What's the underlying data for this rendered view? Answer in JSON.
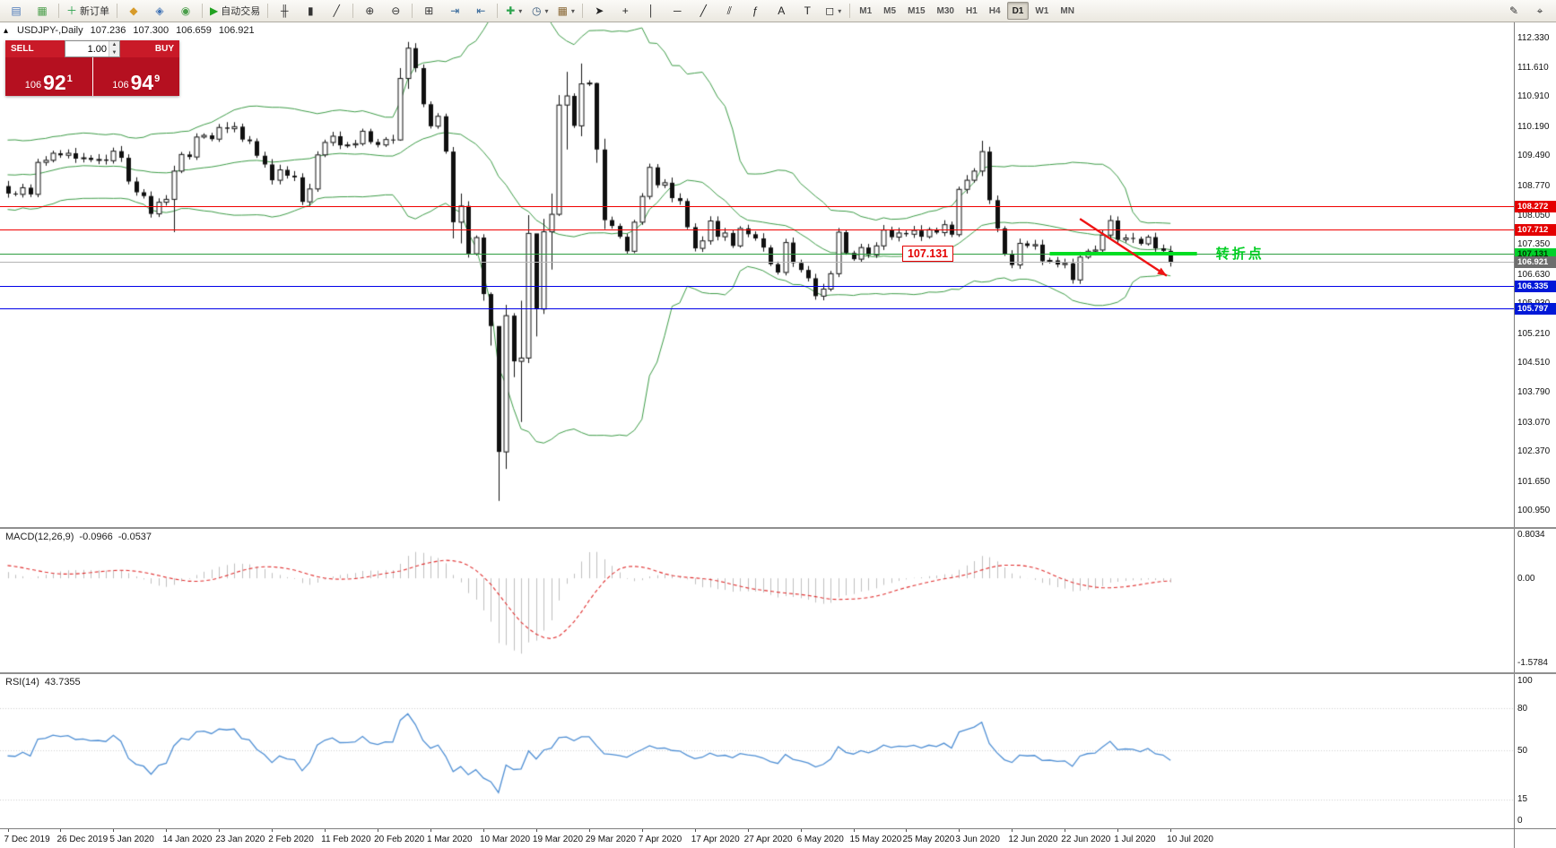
{
  "colors": {
    "candle_bull": "#ffffff",
    "candle_bear": "#101010",
    "candle_outline": "#101010",
    "bollinger": "#3c9b46",
    "macd_hist": "#bfbfbf",
    "macd_signal": "#e03030",
    "rsi": "#4f8fd4",
    "trend_red": "#ee1414",
    "support_green": "#00dd22",
    "panel_red": "#c91a28",
    "price_red": "#b51020"
  },
  "toolbar": {
    "groups": [
      {
        "name": "windows",
        "items": [
          {
            "name": "new-chart-icon",
            "glyph": "▤",
            "color": "#4a77b8"
          },
          {
            "name": "chart-profiles-icon",
            "glyph": "▦",
            "color": "#4a9e4a"
          }
        ]
      },
      {
        "name": "order",
        "items": [
          {
            "name": "new-order-button",
            "glyph": "＋",
            "color": "#2da44e",
            "label": "新订单"
          }
        ]
      },
      {
        "name": "panels",
        "items": [
          {
            "name": "market-watch-icon",
            "glyph": "◆",
            "color": "#d79b2a"
          },
          {
            "name": "data-window-icon",
            "glyph": "◈",
            "color": "#3f72b5"
          },
          {
            "name": "navigator-icon",
            "glyph": "◉",
            "color": "#4a9e4a"
          }
        ]
      },
      {
        "name": "autotrading",
        "items": [
          {
            "name": "auto-trading-button",
            "glyph": "▶",
            "color": "#21a121",
            "label": "自动交易"
          }
        ]
      },
      {
        "name": "chart-types",
        "items": [
          {
            "name": "bar-chart-icon",
            "glyph": "╫",
            "color": "#333333"
          },
          {
            "name": "candlestick-chart-icon",
            "glyph": "▮",
            "color": "#333333"
          },
          {
            "name": "line-chart-icon",
            "glyph": "╱",
            "color": "#333333"
          }
        ]
      },
      {
        "name": "zoom",
        "items": [
          {
            "name": "zoom-in-icon",
            "glyph": "⊕",
            "color": "#333333"
          },
          {
            "name": "zoom-out-icon",
            "glyph": "⊖",
            "color": "#333333"
          }
        ]
      },
      {
        "name": "arrange",
        "items": [
          {
            "name": "tile-windows-icon",
            "glyph": "⊞",
            "color": "#333333"
          },
          {
            "name": "auto-scroll-icon",
            "glyph": "⇥",
            "color": "#336699"
          },
          {
            "name": "chart-shift-icon",
            "glyph": "⇤",
            "color": "#336699"
          }
        ]
      },
      {
        "name": "chart-menus",
        "items": [
          {
            "name": "indicators-button",
            "glyph": "✚",
            "color": "#2da44e",
            "dropdown": true
          },
          {
            "name": "periods-button",
            "glyph": "◷",
            "color": "#335577",
            "dropdown": true
          },
          {
            "name": "templates-button",
            "glyph": "▦",
            "color": "#886633",
            "dropdown": true
          }
        ]
      },
      {
        "name": "drawing-tools",
        "items": [
          {
            "name": "cursor-tool",
            "glyph": "➤",
            "color": "#222222"
          },
          {
            "name": "crosshair-tool",
            "glyph": "+",
            "color": "#222222"
          },
          {
            "name": "vertical-line-tool",
            "glyph": "│",
            "color": "#222222"
          },
          {
            "name": "horizontal-line-tool",
            "glyph": "─",
            "color": "#222222"
          },
          {
            "name": "trendline-tool",
            "glyph": "╱",
            "color": "#222222"
          },
          {
            "name": "channel-tool",
            "glyph": "⫽",
            "color": "#222222"
          },
          {
            "name": "fibonacci-tool",
            "glyph": "ƒ",
            "color": "#222222"
          },
          {
            "name": "text-tool",
            "glyph": "A",
            "color": "#222222"
          },
          {
            "name": "label-tool",
            "glyph": "T",
            "color": "#222222"
          },
          {
            "name": "shapes-tool",
            "glyph": "◻",
            "color": "#222222",
            "dropdown": true
          }
        ]
      }
    ],
    "timeframes": {
      "items": [
        "M1",
        "M5",
        "M15",
        "M30",
        "H1",
        "H4",
        "D1",
        "W1",
        "MN"
      ],
      "active": "D1"
    },
    "right_items": [
      {
        "name": "pencil-icon",
        "glyph": "✎",
        "color": "#333333"
      },
      {
        "name": "pointer-target-icon",
        "glyph": "⌖",
        "color": "#333333"
      }
    ]
  },
  "chart": {
    "title": {
      "symbol_period": "USDJPY-,Daily",
      "open": "107.236",
      "high": "107.300",
      "low": "106.659",
      "close": "106.921"
    },
    "trade_panel": {
      "sell_label": "SELL",
      "buy_label": "BUY",
      "volume": "1.00",
      "sell_price": {
        "big_figure": "106",
        "pips": "92",
        "pipette": "1"
      },
      "buy_price": {
        "big_figure": "106",
        "pips": "94",
        "pipette": "9"
      }
    },
    "annotations": {
      "price_label": {
        "text": "107.131",
        "anchor_index": 122.5,
        "price": 107.131
      },
      "turning_point": {
        "text": "转折点",
        "anchor_index": 160,
        "price": 107.15,
        "color": "#00ce22"
      },
      "trend_arrow": {
        "from_index": 142,
        "from_price": 107.97,
        "to_index": 153.5,
        "to_price": 106.6
      },
      "support_segment": {
        "from_index": 138,
        "to_index": 157.5,
        "price": 107.131,
        "width": 4
      }
    },
    "hlines": [
      {
        "label": "108.272",
        "price": 108.272,
        "color": "#f00000",
        "badge_bg": "#e40000",
        "badge_text": "#ffffff"
      },
      {
        "label": "107.712",
        "price": 107.712,
        "color": "#f00000",
        "badge_bg": "#e40000",
        "badge_text": "#ffffff"
      },
      {
        "label": "107.131",
        "price": 107.131,
        "color": "#2f9e41",
        "badge_bg": "#00d02a",
        "badge_text": "#003300"
      },
      {
        "label": "106.921",
        "price": 106.921,
        "color": "#b4b4b4",
        "badge_bg": "#6e6e6e",
        "badge_text": "#ffffff"
      },
      {
        "label": "106.335",
        "price": 106.335,
        "color": "#0000e8",
        "badge_bg": "#0018d8",
        "badge_text": "#ffffff"
      },
      {
        "label": "105.797",
        "price": 105.797,
        "color": "#0000e8",
        "badge_bg": "#0018d8",
        "badge_text": "#ffffff"
      }
    ],
    "price_axis": {
      "ticks": [
        "112.330",
        "111.610",
        "110.910",
        "110.190",
        "109.490",
        "108.770",
        "108.050",
        "107.350",
        "106.630",
        "105.930",
        "105.210",
        "104.510",
        "103.790",
        "103.070",
        "102.370",
        "101.650",
        "100.950"
      ]
    },
    "time_axis": {
      "labels": [
        "7 Dec 2019",
        "26 Dec 2019",
        "5 Jan 2020",
        "14 Jan 2020",
        "23 Jan 2020",
        "2 Feb 2020",
        "11 Feb 2020",
        "20 Feb 2020",
        "1 Mar 2020",
        "10 Mar 2020",
        "19 Mar 2020",
        "29 Mar 2020",
        "7 Apr 2020",
        "17 Apr 2020",
        "27 Apr 2020",
        "6 May 2020",
        "15 May 2020",
        "25 May 2020",
        "3 Jun 2020",
        "12 Jun 2020",
        "22 Jun 2020",
        "1 Jul 2020",
        "10 Jul 2020"
      ]
    }
  },
  "indicators": {
    "macd": {
      "label": "MACD(12,26,9)",
      "value_main": "-0.0966",
      "value_signal": "-0.0537",
      "scale": [
        "0.8034",
        "0.00",
        "-1.5784"
      ],
      "params": {
        "fast": 12,
        "slow": 26,
        "signal": 9
      }
    },
    "rsi": {
      "label": "RSI(14)",
      "value": "43.7355",
      "scale": [
        "100",
        "80",
        "50",
        "15",
        "0"
      ],
      "levels": [
        80,
        50,
        15
      ],
      "period": 14
    }
  },
  "chart_data": {
    "type": "candlestick",
    "symbol": "USDJPY-",
    "timeframe": "Daily",
    "y_range": [
      100.55,
      112.7
    ],
    "macd_range": [
      -1.75,
      0.92
    ],
    "bollinger": {
      "period": 20,
      "deviation": 2
    },
    "pre_closes": [
      108.24,
      108.88,
      109.18,
      109.28,
      109.07,
      109.01,
      108.68,
      108.38,
      108.78,
      108.86,
      108.54,
      108.68,
      108.58,
      108.88,
      109.18,
      109.07,
      109.48,
      109.58,
      109.5,
      109.44,
      109.61,
      109.73,
      109.49,
      108.84,
      108.76
    ],
    "closes": [
      108.58,
      108.56,
      108.72,
      108.56,
      109.33,
      109.38,
      109.55,
      109.5,
      109.55,
      109.42,
      109.44,
      109.39,
      109.4,
      109.37,
      109.6,
      109.44,
      108.87,
      108.61,
      108.52,
      108.09,
      108.37,
      108.44,
      109.12,
      109.52,
      109.46,
      109.94,
      109.98,
      109.89,
      110.17,
      110.14,
      110.19,
      109.88,
      109.84,
      109.49,
      109.28,
      108.9,
      109.15,
      109.01,
      108.97,
      108.38,
      108.69,
      109.51,
      109.81,
      109.96,
      109.74,
      109.75,
      109.78,
      110.08,
      109.82,
      109.75,
      109.88,
      109.87,
      111.35,
      112.08,
      111.6,
      110.73,
      110.2,
      110.44,
      109.59,
      107.89,
      108.28,
      107.13,
      107.52,
      106.16,
      105.39,
      102.36,
      105.64,
      104.54,
      104.62,
      107.62,
      105.8,
      107.66,
      108.08,
      110.71,
      110.93,
      110.21,
      111.22,
      111.24,
      109.64,
      107.94,
      107.8,
      107.54,
      107.19,
      107.89,
      108.51,
      109.21,
      108.78,
      108.84,
      108.47,
      108.4,
      107.77,
      107.26,
      107.44,
      107.92,
      107.54,
      107.63,
      107.32,
      107.74,
      107.6,
      107.5,
      107.28,
      106.88,
      106.68,
      107.4,
      106.91,
      106.74,
      106.54,
      106.11,
      106.28,
      106.65,
      107.65,
      107.15,
      107.0,
      107.28,
      107.1,
      107.32,
      107.7,
      107.53,
      107.63,
      107.6,
      107.69,
      107.54,
      107.71,
      107.64,
      107.83,
      107.59,
      108.68,
      108.9,
      109.12,
      109.59,
      108.42,
      107.74,
      107.12,
      106.86,
      107.38,
      107.32,
      107.35,
      106.95,
      106.97,
      106.87,
      106.9,
      106.5,
      107.05,
      107.19,
      107.22,
      107.58,
      107.93,
      107.47,
      107.51,
      107.49,
      107.37,
      107.53,
      107.26,
      107.2,
      106.92
    ],
    "wicks": {
      "22": [
        109.25,
        107.65
      ],
      "52": [
        111.6,
        109.85
      ],
      "53": [
        112.23,
        111.1
      ],
      "59": [
        109.7,
        107.5
      ],
      "60": [
        108.58,
        107.38
      ],
      "63": [
        107.6,
        106.0
      ],
      "64": [
        106.2,
        104.92
      ],
      "65": [
        105.2,
        101.18
      ],
      "66": [
        105.9,
        101.95
      ],
      "67": [
        105.7,
        104.16
      ],
      "68": [
        106.0,
        103.08
      ],
      "69": [
        108.06,
        104.5
      ],
      "70": [
        107.58,
        105.14
      ],
      "71": [
        107.97,
        105.68
      ],
      "72": [
        108.58,
        106.75
      ],
      "73": [
        110.95,
        108.04
      ],
      "74": [
        111.51,
        109.64
      ],
      "76": [
        111.71,
        109.96
      ],
      "78": [
        111.25,
        109.32
      ],
      "79": [
        109.9,
        107.72
      ],
      "129": [
        109.85,
        109.0
      ]
    }
  }
}
